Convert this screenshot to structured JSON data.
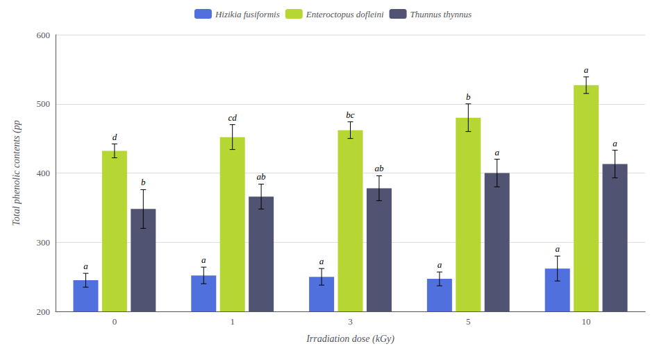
{
  "chart_data": {
    "type": "bar",
    "xlabel": "Irradiation dose (kGy)",
    "ylabel": "Total phenolic contents (pp",
    "categories": [
      "0",
      "1",
      "3",
      "5",
      "10"
    ],
    "series": [
      {
        "name": "Hizikia fusiformis",
        "values": [
          245,
          252,
          250,
          247,
          262
        ],
        "errors": [
          10,
          12,
          12,
          10,
          18
        ],
        "annotations": [
          "a",
          "a",
          "a",
          "a",
          "a"
        ]
      },
      {
        "name": "Enteroctopus dofleini",
        "values": [
          432,
          452,
          462,
          480,
          527
        ],
        "errors": [
          10,
          18,
          12,
          20,
          12
        ],
        "annotations": [
          "d",
          "cd",
          "bc",
          "b",
          "a"
        ]
      },
      {
        "name": "Thunnus thynnus",
        "values": [
          348,
          366,
          378,
          400,
          413
        ],
        "errors": [
          28,
          18,
          18,
          20,
          20
        ],
        "annotations": [
          "b",
          "ab",
          "ab",
          "a",
          "a"
        ]
      }
    ],
    "ylim": [
      200,
      600
    ],
    "yticks": [
      200,
      300,
      400,
      500,
      600
    ],
    "grid": true,
    "legend": "top"
  }
}
